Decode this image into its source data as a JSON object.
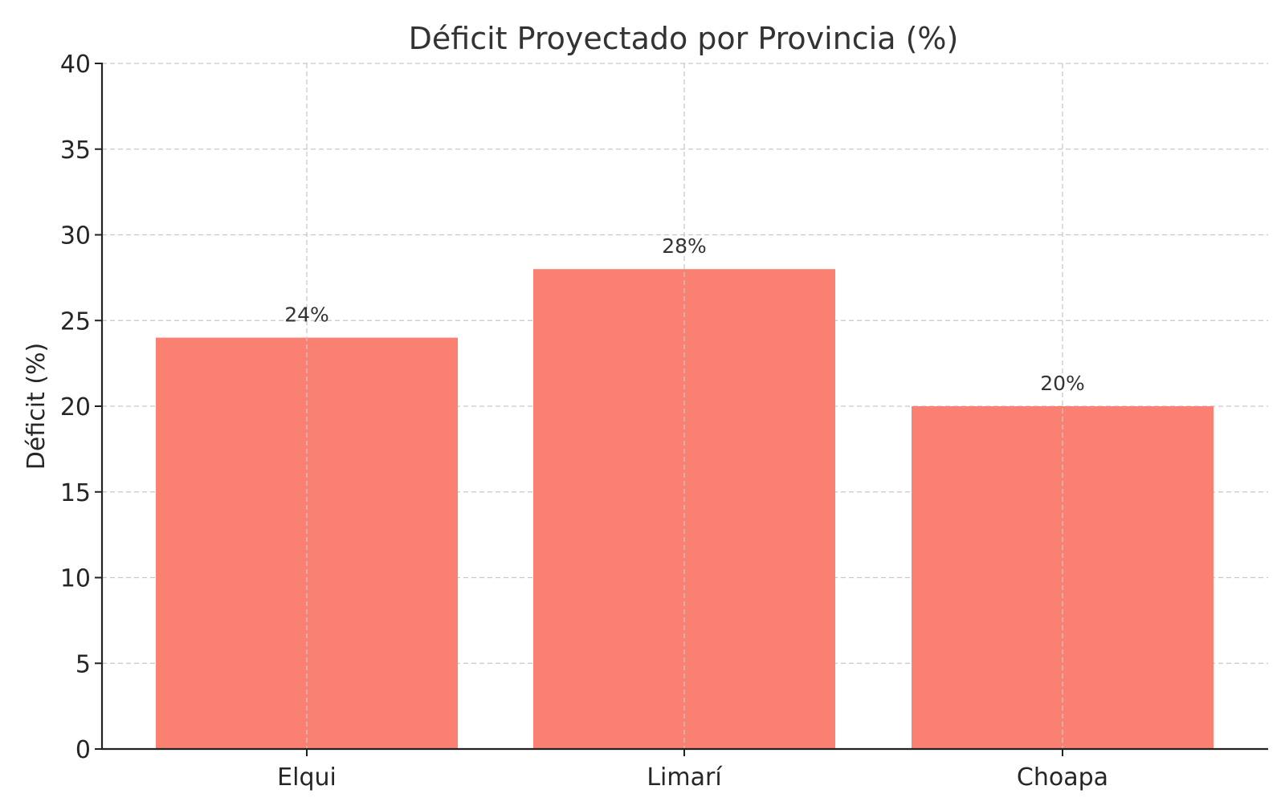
{
  "chart_data": {
    "type": "bar",
    "title": "Déficit Proyectado por Provincia (%)",
    "xlabel": "",
    "ylabel": "Déficit (%)",
    "categories": [
      "Elqui",
      "Limarí",
      "Choapa"
    ],
    "values": [
      24,
      28,
      20
    ],
    "data_labels": [
      "24%",
      "28%",
      "20%"
    ],
    "ylim": [
      0,
      40
    ],
    "yticks": [
      0,
      5,
      10,
      15,
      20,
      25,
      30,
      35,
      40
    ],
    "bar_color": "#fa8072",
    "grid": true
  }
}
